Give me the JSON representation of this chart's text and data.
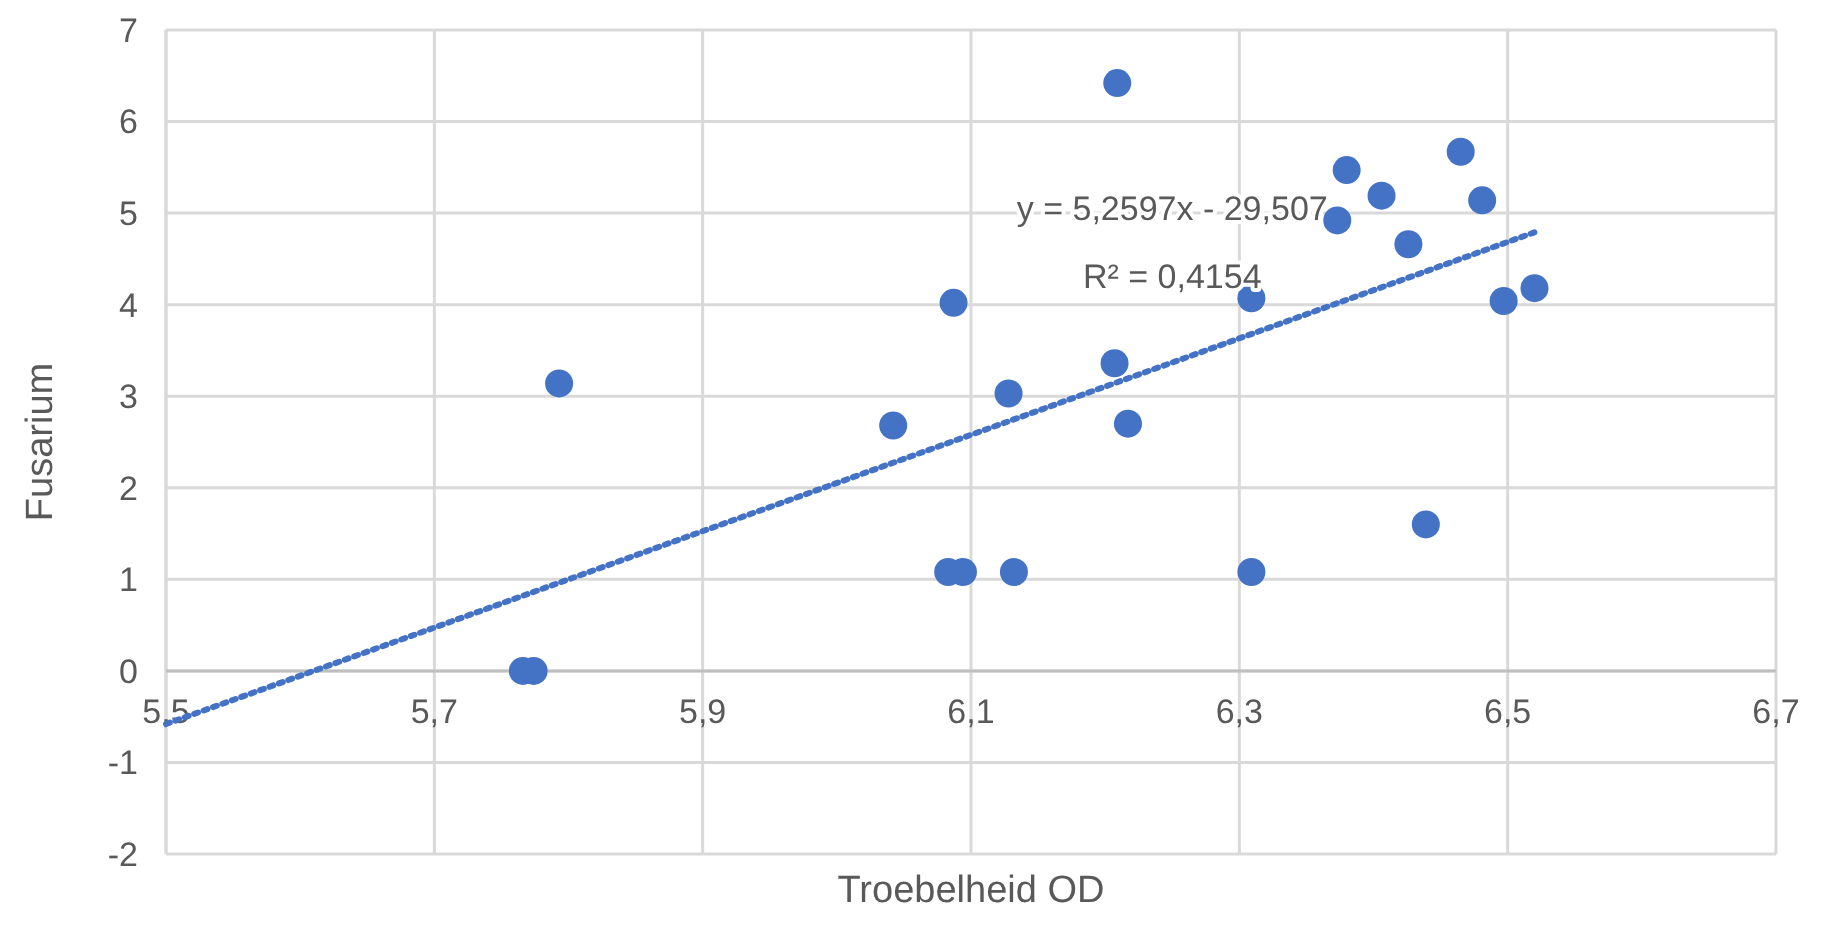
{
  "chart_data": {
    "type": "scatter",
    "xlabel": "Troebelheid OD",
    "ylabel": "Fusarium",
    "xlim": [
      5.5,
      6.7
    ],
    "ylim": [
      -2,
      7
    ],
    "xticks": [
      {
        "value": 5.5,
        "label": "5,5"
      },
      {
        "value": 5.7,
        "label": "5,7"
      },
      {
        "value": 5.9,
        "label": "5,9"
      },
      {
        "value": 6.1,
        "label": "6,1"
      },
      {
        "value": 6.3,
        "label": "6,3"
      },
      {
        "value": 6.5,
        "label": "6,5"
      },
      {
        "value": 6.7,
        "label": "6,7"
      }
    ],
    "yticks": [
      -2,
      -1,
      0,
      1,
      2,
      3,
      4,
      5,
      6,
      7
    ],
    "grid": true,
    "series": [
      {
        "type": "scatter",
        "marker": "circle",
        "color": "#4472c4",
        "x": [
          5.766,
          5.774,
          5.793,
          6.042,
          6.087,
          6.083,
          6.094,
          6.128,
          6.132,
          6.207,
          6.209,
          6.217,
          6.309,
          6.309,
          6.373,
          6.38,
          6.406,
          6.426,
          6.439,
          6.465,
          6.481,
          6.497,
          6.52
        ],
        "values": [
          0,
          0,
          3.14,
          2.68,
          4.02,
          1.08,
          1.08,
          3.03,
          1.08,
          3.36,
          6.42,
          2.7,
          4.07,
          1.08,
          4.92,
          5.47,
          5.19,
          4.66,
          1.6,
          5.67,
          5.14,
          4.04,
          4.18
        ]
      },
      {
        "type": "line",
        "marker": "none",
        "color": "#4472c4",
        "line_style": "dotted",
        "x": [
          5.5,
          6.52
        ],
        "values": [
          -0.58,
          4.79
        ]
      }
    ],
    "annotations": [
      "y = 5,2597x - 29,507",
      "R² = 0,4154"
    ]
  }
}
